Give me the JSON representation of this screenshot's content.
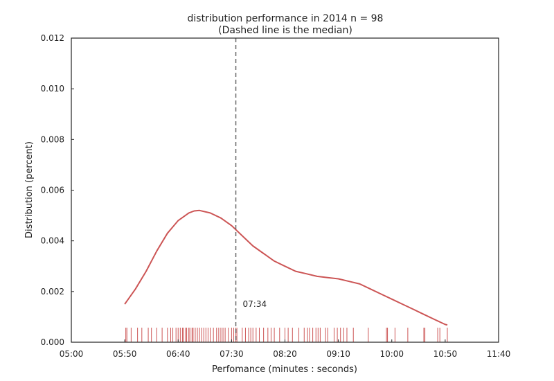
{
  "chart_data": {
    "type": "line",
    "title": "distribution performance in 2014 n = 98",
    "subtitle": "(Dashed line is the median)",
    "xlabel": "Perfomance (minutes : seconds)",
    "ylabel": "Distribution (percent)",
    "xlim": [
      300,
      700
    ],
    "ylim": [
      0,
      0.012
    ],
    "x_ticks": [
      {
        "value": 300,
        "label": "05:00"
      },
      {
        "value": 350,
        "label": "05:50"
      },
      {
        "value": 400,
        "label": "06:40"
      },
      {
        "value": 450,
        "label": "07:30"
      },
      {
        "value": 500,
        "label": "08:20"
      },
      {
        "value": 550,
        "label": "09:10"
      },
      {
        "value": 600,
        "label": "10:00"
      },
      {
        "value": 650,
        "label": "10:50"
      },
      {
        "value": 700,
        "label": "11:40"
      }
    ],
    "y_ticks": [
      {
        "value": 0,
        "label": "0.000"
      },
      {
        "value": 0.002,
        "label": "0.002"
      },
      {
        "value": 0.004,
        "label": "0.004"
      },
      {
        "value": 0.006,
        "label": "0.006"
      },
      {
        "value": 0.008,
        "label": "0.008"
      },
      {
        "value": 0.01,
        "label": "0.010"
      },
      {
        "value": 0.012,
        "label": "0.012"
      }
    ],
    "grid": false,
    "line_color": "#cc5555",
    "median_color": "#666666",
    "rug_color": "#cc5555",
    "series": [
      {
        "x": [
          350,
          360,
          370,
          380,
          390,
          400,
          410,
          415,
          420,
          430,
          440,
          450,
          460,
          470,
          480,
          490,
          500,
          510,
          520,
          530,
          540,
          550,
          560,
          570,
          580,
          590,
          600,
          610,
          620,
          630,
          640,
          650,
          652
        ],
        "values": [
          0.0015,
          0.0021,
          0.0028,
          0.0036,
          0.0043,
          0.0048,
          0.0051,
          0.00518,
          0.0052,
          0.0051,
          0.0049,
          0.0046,
          0.0042,
          0.0038,
          0.0035,
          0.0032,
          0.003,
          0.0028,
          0.0027,
          0.0026,
          0.00255,
          0.0025,
          0.0024,
          0.0023,
          0.0021,
          0.0019,
          0.0017,
          0.0015,
          0.0013,
          0.0011,
          0.0009,
          0.0007,
          0.00068
        ]
      }
    ],
    "median": {
      "value": 454,
      "label": "07:34"
    },
    "rug": [
      351,
      352,
      356,
      362,
      366,
      372,
      375,
      380,
      385,
      390,
      393,
      395,
      398,
      400,
      402,
      404,
      405,
      407,
      408,
      410,
      411,
      413,
      414,
      416,
      418,
      420,
      422,
      424,
      426,
      428,
      430,
      433,
      436,
      438,
      440,
      442,
      444,
      447,
      450,
      452,
      454,
      455,
      460,
      463,
      466,
      468,
      470,
      473,
      476,
      480,
      484,
      487,
      490,
      495,
      500,
      503,
      507,
      513,
      518,
      521,
      523,
      526,
      529,
      531,
      533,
      538,
      540,
      546,
      549,
      552,
      555,
      558,
      564,
      578,
      595,
      596,
      603,
      615,
      630,
      631,
      643,
      645,
      652
    ]
  }
}
